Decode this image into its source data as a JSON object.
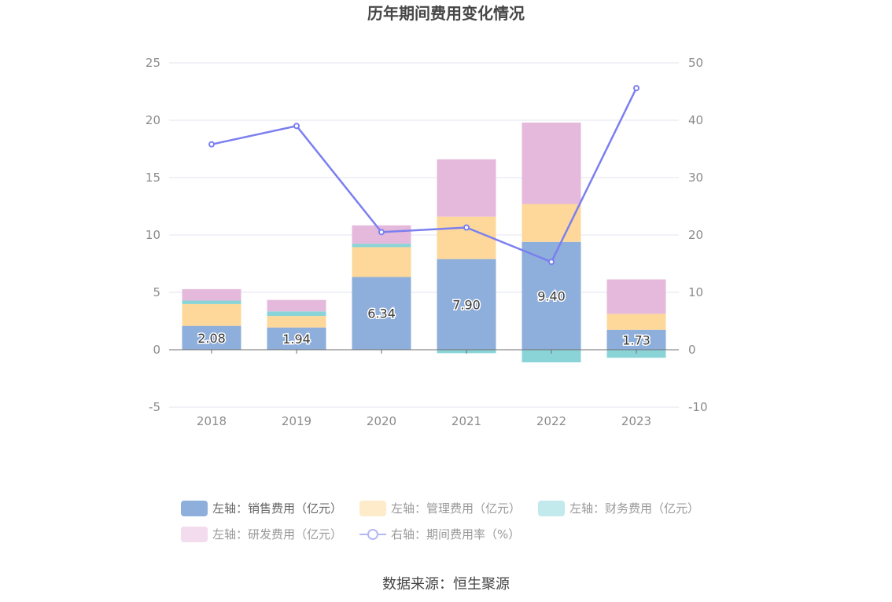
{
  "chart_data": {
    "type": "bar",
    "title": "历年期间费用变化情况",
    "categories": [
      "2018",
      "2019",
      "2020",
      "2021",
      "2022",
      "2023"
    ],
    "series": [
      {
        "name": "左轴：销售费用（亿元）",
        "axis": "left",
        "color": "#8eaedb",
        "values": [
          2.08,
          1.94,
          6.34,
          7.9,
          9.4,
          1.73
        ],
        "labels": [
          "2.08",
          "1.94",
          "6.34",
          "7.90",
          "9.40",
          "1.73"
        ]
      },
      {
        "name": "左轴：管理费用（亿元）",
        "axis": "left",
        "color": "#fdd89a",
        "values": [
          1.9,
          1.0,
          2.6,
          3.7,
          3.3,
          1.4
        ]
      },
      {
        "name": "左轴：财务费用（亿元）",
        "axis": "left",
        "color": "#8ad4d8",
        "values": [
          0.3,
          0.4,
          0.3,
          -0.3,
          -1.1,
          -0.7
        ]
      },
      {
        "name": "左轴：研发费用（亿元）",
        "axis": "left",
        "color": "#e5b9db",
        "values": [
          1.0,
          1.0,
          1.6,
          5.0,
          7.1,
          3.0
        ]
      },
      {
        "name": "右轴：期间费用率（%）",
        "axis": "right",
        "type": "line",
        "color": "#7b7fef",
        "values": [
          35.8,
          39.0,
          20.5,
          21.3,
          15.3,
          45.6
        ]
      }
    ],
    "ylim_left": [
      -5,
      25
    ],
    "yticks_left": [
      "-5",
      "0",
      "5",
      "10",
      "15",
      "20",
      "25"
    ],
    "ylim_right": [
      -10,
      50
    ],
    "yticks_right": [
      "-10",
      "0",
      "10",
      "20",
      "30",
      "40",
      "50"
    ],
    "stacked": true,
    "grid": true,
    "legend_position": "bottom"
  },
  "source": "数据来源：恒生聚源"
}
